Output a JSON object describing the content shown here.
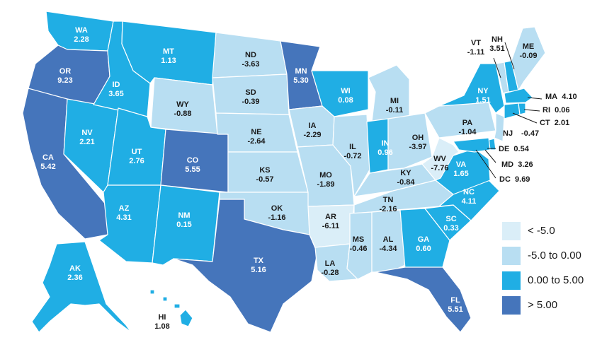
{
  "colors": {
    "lt_neg5": "#daeef8",
    "neg5_to_0": "#b8def2",
    "zero_to_5": "#20aee4",
    "gt5": "#4575bb"
  },
  "legend": [
    {
      "label": "< -5.0",
      "color": "#daeef8"
    },
    {
      "label": "-5.0 to 0.00",
      "color": "#b8def2"
    },
    {
      "label": "0.00 to 5.00",
      "color": "#20aee4"
    },
    {
      "label": "> 5.00",
      "color": "#4575bb"
    }
  ],
  "states": {
    "WA": {
      "name": "WA",
      "value": "2.28"
    },
    "OR": {
      "name": "OR",
      "value": "9.23"
    },
    "CA": {
      "name": "CA",
      "value": "5.42"
    },
    "NV": {
      "name": "NV",
      "value": "2.21"
    },
    "ID": {
      "name": "ID",
      "value": "3.65"
    },
    "MT": {
      "name": "MT",
      "value": "1.13"
    },
    "WY": {
      "name": "WY",
      "value": "-0.88"
    },
    "UT": {
      "name": "UT",
      "value": "2.76"
    },
    "CO": {
      "name": "CO",
      "value": "5.55"
    },
    "AZ": {
      "name": "AZ",
      "value": "4.31"
    },
    "NM": {
      "name": "NM",
      "value": "0.15"
    },
    "ND": {
      "name": "ND",
      "value": "-3.63"
    },
    "SD": {
      "name": "SD",
      "value": "-0.39"
    },
    "NE": {
      "name": "NE",
      "value": "-2.64"
    },
    "KS": {
      "name": "KS",
      "value": "-0.57"
    },
    "OK": {
      "name": "OK",
      "value": "-1.16"
    },
    "TX": {
      "name": "TX",
      "value": "5.16"
    },
    "MN": {
      "name": "MN",
      "value": "5.30"
    },
    "IA": {
      "name": "IA",
      "value": "-2.29"
    },
    "MO": {
      "name": "MO",
      "value": "-1.89"
    },
    "AR": {
      "name": "AR",
      "value": "-6.11"
    },
    "LA": {
      "name": "LA",
      "value": "-0.28"
    },
    "WI": {
      "name": "WI",
      "value": "0.08"
    },
    "IL": {
      "name": "IL",
      "value": "-0.72"
    },
    "MI": {
      "name": "MI",
      "value": "-0.11"
    },
    "IN": {
      "name": "IN",
      "value": "0.96"
    },
    "OH": {
      "name": "OH",
      "value": "-3.97"
    },
    "KY": {
      "name": "KY",
      "value": "-0.84"
    },
    "TN": {
      "name": "TN",
      "value": "-2.16"
    },
    "MS": {
      "name": "MS",
      "value": "-0.46"
    },
    "AL": {
      "name": "AL",
      "value": "-4.34"
    },
    "GA": {
      "name": "GA",
      "value": "0.60"
    },
    "FL": {
      "name": "FL",
      "value": "5.51"
    },
    "SC": {
      "name": "SC",
      "value": "0.33"
    },
    "NC": {
      "name": "NC",
      "value": "4.11"
    },
    "VA": {
      "name": "VA",
      "value": "1.65"
    },
    "WV": {
      "name": "WV",
      "value": "-7.76"
    },
    "PA": {
      "name": "PA",
      "value": "-1.04"
    },
    "NY": {
      "name": "NY",
      "value": "1.51"
    },
    "VT": {
      "name": "VT",
      "value": "-1.11"
    },
    "NH": {
      "name": "NH",
      "value": "3.51"
    },
    "ME": {
      "name": "ME",
      "value": "-0.09"
    },
    "MA": {
      "name": "MA",
      "value": "4.10"
    },
    "RI": {
      "name": "RI",
      "value": "0.06"
    },
    "CT": {
      "name": "CT",
      "value": "2.01"
    },
    "NJ": {
      "name": "NJ",
      "value": "-0.47"
    },
    "DE": {
      "name": "DE",
      "value": "0.54"
    },
    "MD": {
      "name": "MD",
      "value": "3.26"
    },
    "DC": {
      "name": "DC",
      "value": "9.69"
    },
    "AK": {
      "name": "AK",
      "value": "2.36"
    },
    "HI": {
      "name": "HI",
      "value": "1.08"
    }
  }
}
